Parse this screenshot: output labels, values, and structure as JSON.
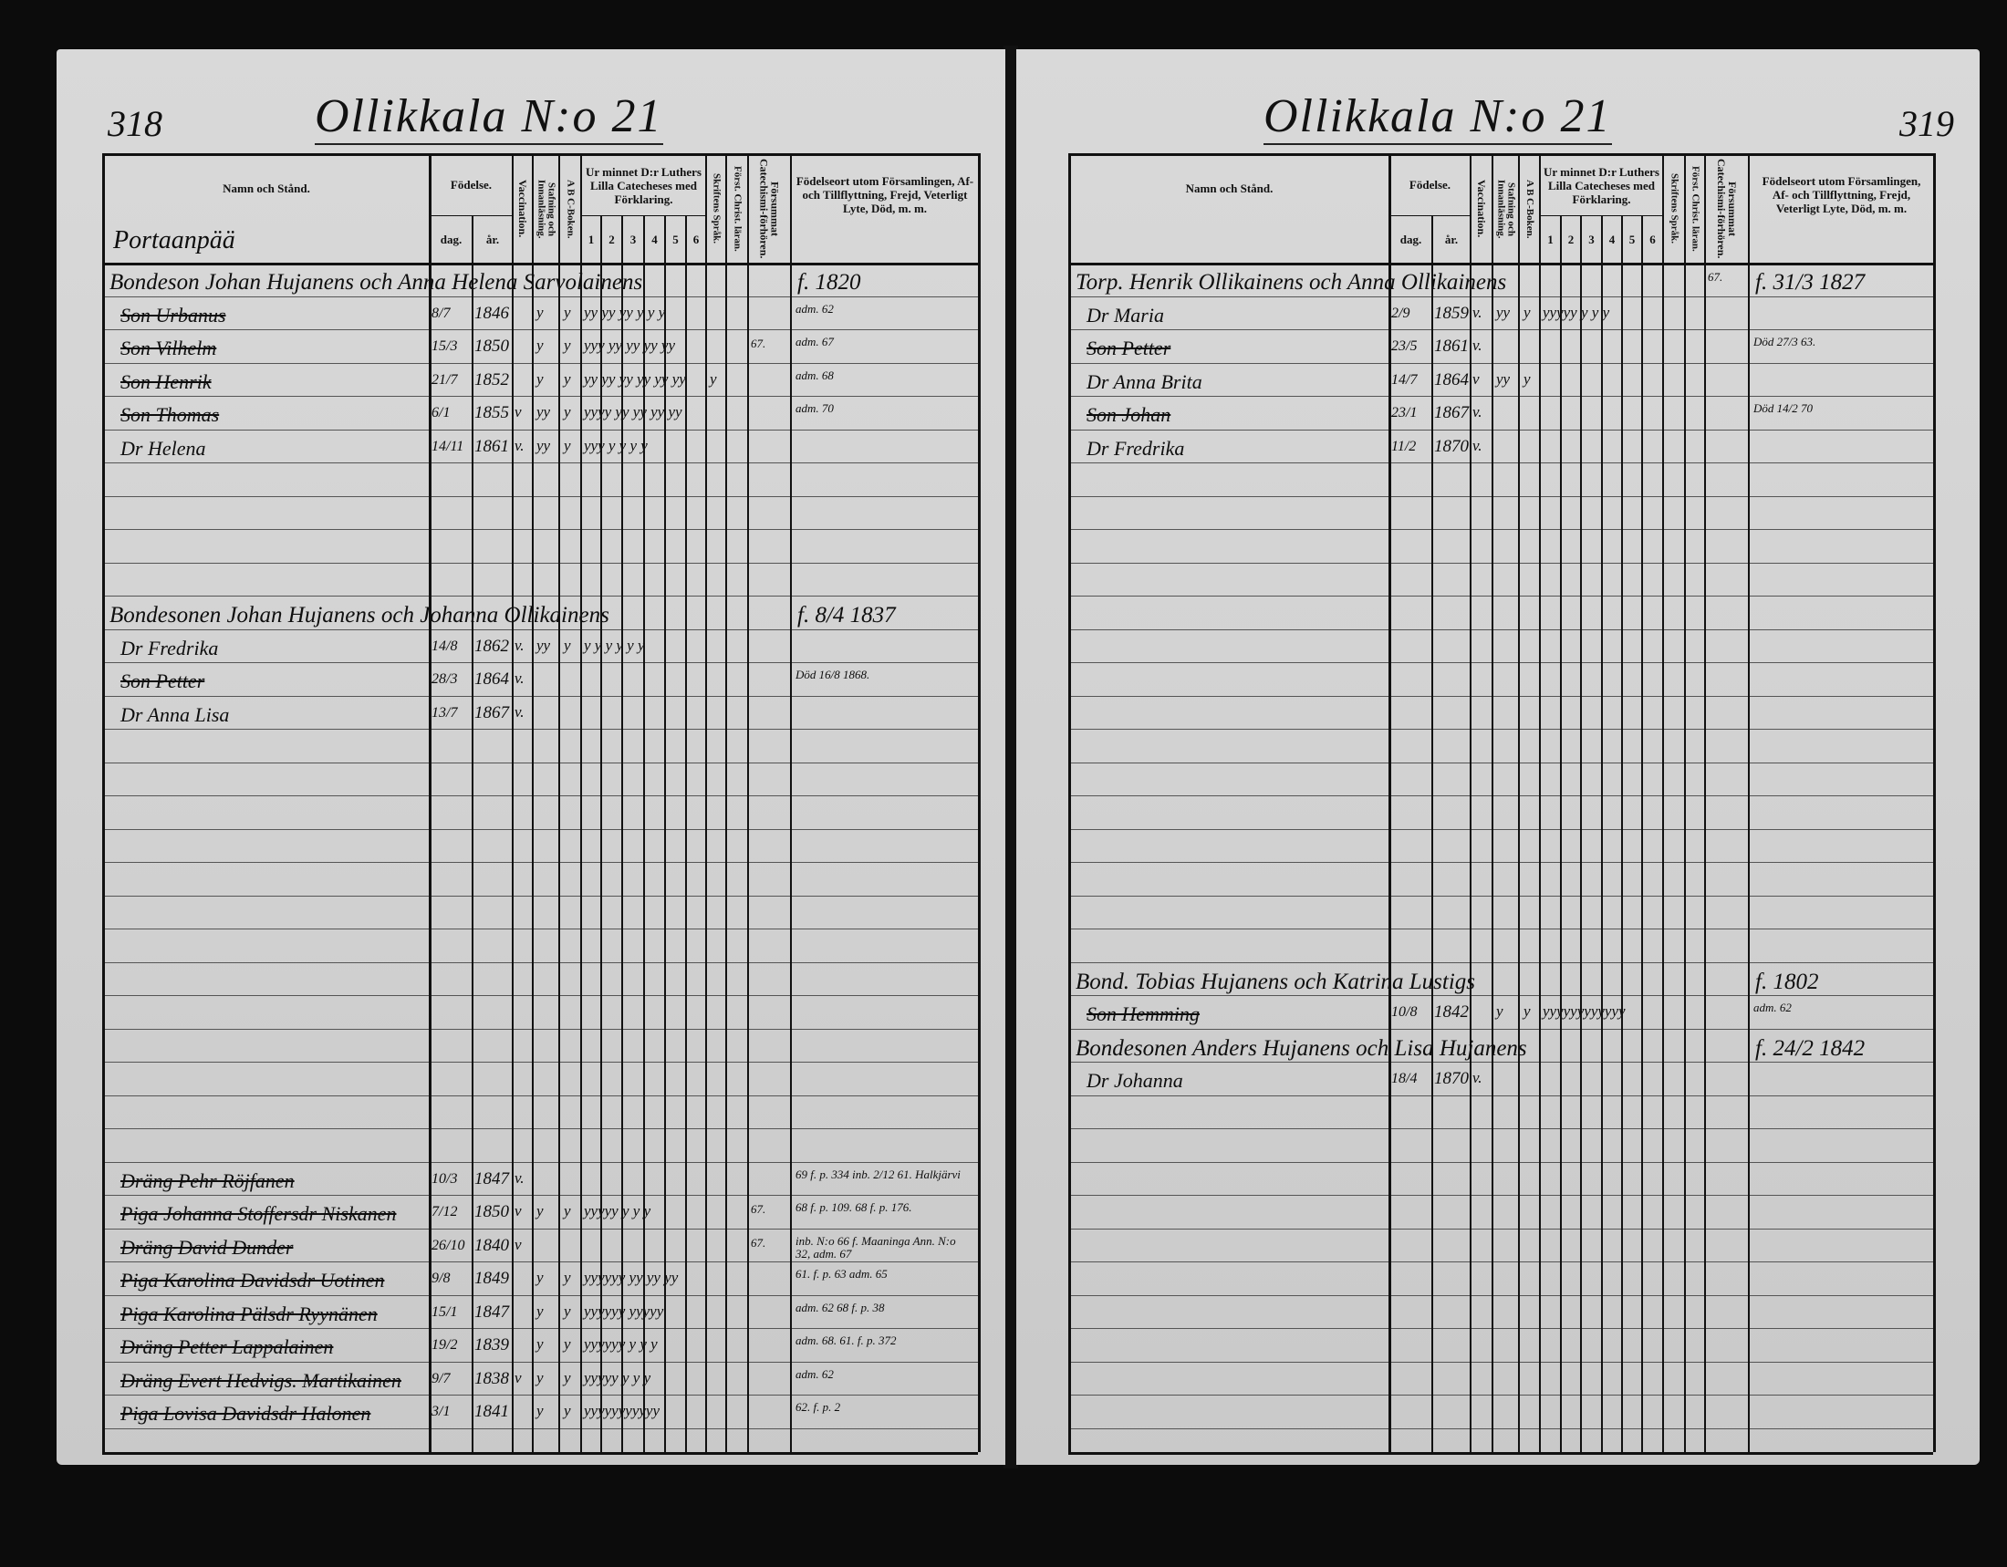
{
  "header": {
    "name": "Namn och Stånd.",
    "birth": "Födelse.",
    "dag": "dag.",
    "ar": "år.",
    "vaccination": "Vaccination.",
    "stafning": "Stafning och Innanläsning.",
    "abc": "A B C-Boken.",
    "catechism": "Ur minnet D:r Luthers Lilla Catecheses med Förklaring.",
    "nums": [
      "1",
      "2",
      "3",
      "4",
      "5",
      "6"
    ],
    "skriftens": "Skriftens Språk.",
    "forst": "Först. Christ. läran.",
    "forsummat": "Försummat Catechismi-förhören.",
    "notes": "Födelseort utom Församlingen, Af- och Tillflyttning, Frejd, Veterligt Lyte, Död, m. m."
  },
  "pages": [
    {
      "number": "318",
      "title": "Ollikkala N:o 21",
      "section": "Portaanpää",
      "rows": [
        {
          "head": true,
          "name": "Bondeson Johan Hujanens och Anna Helena Sarvolainens",
          "note": "f. 1820"
        },
        {
          "name": "Son Urbanus",
          "struck": true,
          "day": "8/7",
          "year": "1846",
          "read": "y",
          "abc": "y",
          "cat": "yy yy yy y y y",
          "note": "adm. 62"
        },
        {
          "name": "Son Vilhelm",
          "struck": true,
          "day": "15/3",
          "year": "1850",
          "read": "y",
          "abc": "y",
          "cat": "yyy yy yy yy yy",
          "forsummat": "67.",
          "note": "adm. 67"
        },
        {
          "name": "Son Henrik",
          "struck": true,
          "day": "21/7",
          "year": "1852",
          "read": "y",
          "abc": "y",
          "cat": "yy yy yy yy yy yy",
          "skrift": "y",
          "note": "adm. 68"
        },
        {
          "name": "Son Thomas",
          "struck": true,
          "day": "6/1",
          "year": "1855",
          "vacc": "v",
          "read": "yy",
          "abc": "y",
          "cat": "yyyy yy yy yy yy",
          "note": "adm. 70"
        },
        {
          "name": "Dr Helena",
          "day": "14/11",
          "year": "1861",
          "vacc": "v.",
          "read": "yy",
          "abc": "y",
          "cat": "yyy y y y y"
        },
        {},
        {},
        {},
        {},
        {
          "head": true,
          "name": "Bondesonen Johan Hujanens och Johanna Ollikainens",
          "note": "f. 8/4 1837"
        },
        {
          "name": "Dr Fredrika",
          "day": "14/8",
          "year": "1862",
          "vacc": "v.",
          "read": "yy",
          "abc": "y",
          "cat": "y y y y y y"
        },
        {
          "name": "Son Petter",
          "struck": true,
          "day": "28/3",
          "year": "1864",
          "vacc": "v.",
          "note": "Död 16/8 1868."
        },
        {
          "name": "Dr Anna Lisa",
          "day": "13/7",
          "year": "1867",
          "vacc": "v."
        },
        {},
        {},
        {},
        {},
        {},
        {},
        {},
        {},
        {},
        {},
        {},
        {},
        {},
        {
          "name": "Dräng Pehr Röjfanen",
          "struck": true,
          "day": "10/3",
          "year": "1847",
          "vacc": "v.",
          "note": "69 f. p. 334 inb. 2/12 61. Halkjärvi"
        },
        {
          "name": "Piga Johanna Stoffersdr Niskanen",
          "struck": true,
          "day": "7/12",
          "year": "1850",
          "vacc": "v",
          "read": "y",
          "abc": "y",
          "cat": "yyyyy y y y",
          "forsummat": "67.",
          "note": "68 f. p. 109. 68 f. p. 176."
        },
        {
          "name": "Dräng David Dunder",
          "struck": true,
          "day": "26/10",
          "year": "1840",
          "vacc": "v",
          "forsummat": "67.",
          "note": "inb. N:o 66 f. Maaninga Ann. N:o 32, adm. 67"
        },
        {
          "name": "Piga Karolina Davidsdr Uotinen",
          "struck": true,
          "day": "9/8",
          "year": "1849",
          "read": "y",
          "abc": "y",
          "cat": "yyyyyy yy yy yy",
          "note": "61. f. p. 63 adm. 65"
        },
        {
          "name": "Piga Karolina Pälsdr Ryynänen",
          "struck": true,
          "day": "15/1",
          "year": "1847",
          "read": "y",
          "abc": "y",
          "cat": "yyyyyy yyyyy",
          "note": "adm. 62 68 f. p. 38"
        },
        {
          "name": "Dräng Petter Lappalainen",
          "struck": true,
          "day": "19/2",
          "year": "1839",
          "read": "y",
          "abc": "y",
          "cat": "yyyyyy y y y",
          "note": "adm. 68. 61. f. p. 372"
        },
        {
          "name": "Dräng Evert Hedvigs. Martikainen",
          "struck": true,
          "day": "9/7",
          "year": "1838",
          "vacc": "v",
          "read": "y",
          "abc": "y",
          "cat": "yyyyy y y y",
          "note": "adm. 62"
        },
        {
          "name": "Piga Lovisa Davidsdr Halonen",
          "struck": true,
          "day": "3/1",
          "year": "1841",
          "read": "y",
          "abc": "y",
          "cat": "yyyyyyyyyyy",
          "note": "62. f. p. 2"
        }
      ]
    },
    {
      "number": "319",
      "title": "Ollikkala N:o 21",
      "section": "",
      "rows": [
        {
          "head": true,
          "name": "Torp. Henrik Ollikainens och Anna Ollikainens",
          "note": "f. 31/3 1827",
          "forsummat": "67."
        },
        {
          "name": "Dr Maria",
          "day": "2/9",
          "year": "1859",
          "vacc": "v.",
          "read": "yy",
          "abc": "y",
          "cat": "yyyyy y y y"
        },
        {
          "name": "Son Petter",
          "struck": true,
          "day": "23/5",
          "year": "1861",
          "vacc": "v.",
          "note": "Död 27/3 63."
        },
        {
          "name": "Dr Anna Brita",
          "day": "14/7",
          "year": "1864",
          "vacc": "v",
          "read": "yy",
          "abc": "y"
        },
        {
          "name": "Son Johan",
          "struck": true,
          "day": "23/1",
          "year": "1867",
          "vacc": "v.",
          "note": "Död 14/2 70"
        },
        {
          "name": "Dr Fredrika",
          "day": "11/2",
          "year": "1870",
          "vacc": "v."
        },
        {},
        {},
        {},
        {},
        {},
        {},
        {},
        {},
        {},
        {},
        {},
        {},
        {},
        {},
        {},
        {
          "head": true,
          "name": "Bond. Tobias Hujanens och Katrina Lustigs",
          "note": "f. 1802"
        },
        {
          "name": "Son Hemming",
          "struck": true,
          "day": "10/8",
          "year": "1842",
          "read": "y",
          "abc": "y",
          "cat": "yyyyyyyyyyyy",
          "note": "adm. 62"
        },
        {
          "head": true,
          "name": "Bondesonen Anders Hujanens och Lisa Hujanens",
          "note": "f. 24/2 1842"
        },
        {
          "name": "Dr Johanna",
          "day": "18/4",
          "year": "1870",
          "vacc": "v."
        },
        {},
        {},
        {},
        {},
        {},
        {},
        {},
        {},
        {},
        {}
      ]
    }
  ]
}
